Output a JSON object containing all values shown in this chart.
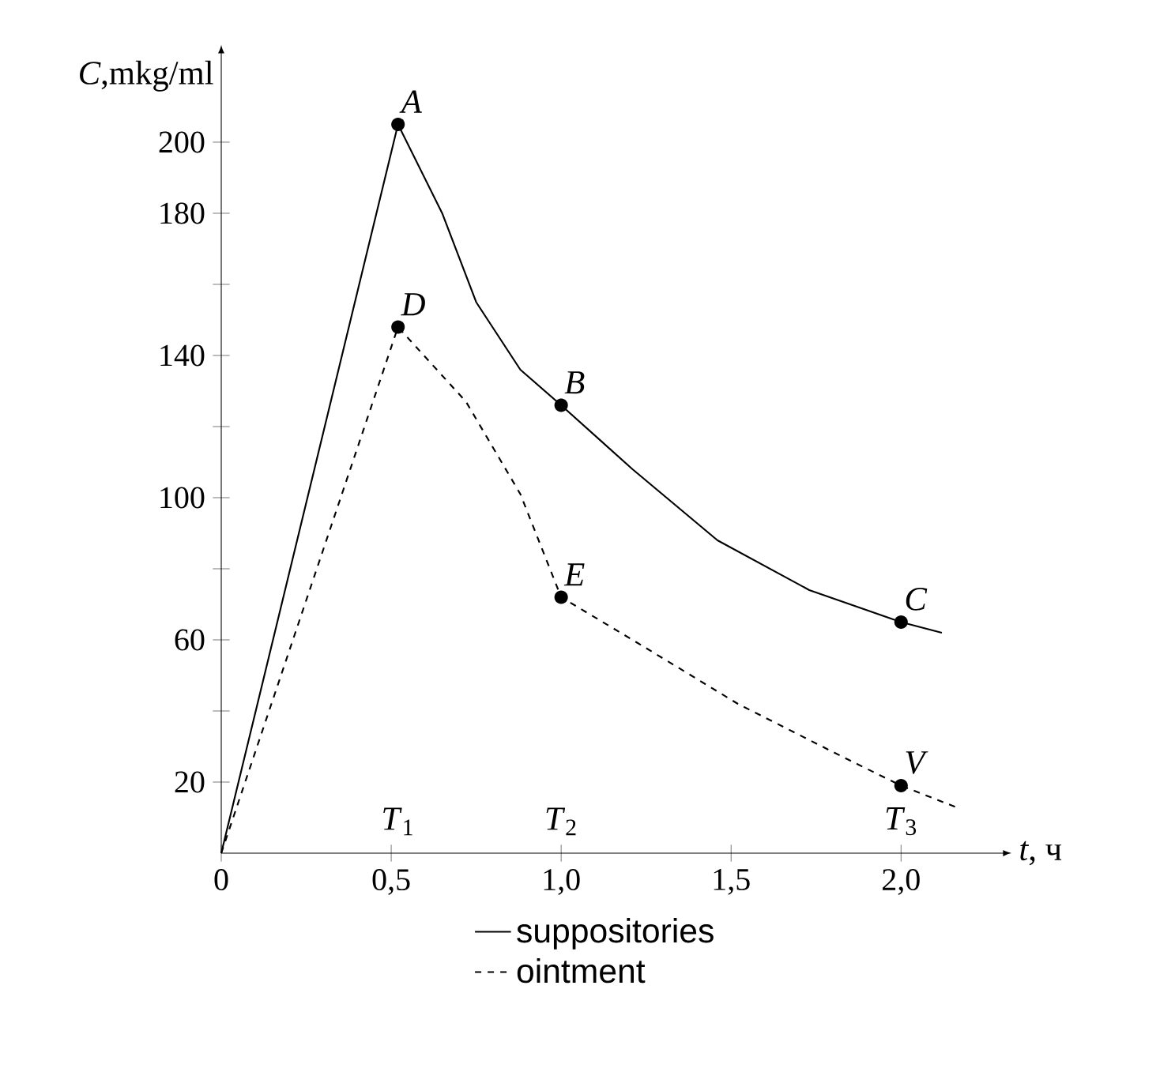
{
  "chart_data": {
    "type": "line",
    "xlabel": "*t*, ч",
    "ylabel": "*C*,mkg/ml",
    "xlim": [
      0,
      2.3
    ],
    "ylim": [
      0,
      225
    ],
    "xticks": [
      0,
      {
        "value": 0.5,
        "label": "0,5"
      },
      {
        "value": 1.0,
        "label": "1,0"
      },
      {
        "value": 1.5,
        "label": "1,5"
      },
      {
        "value": 2.0,
        "label": "2,0"
      }
    ],
    "yticks": [
      20,
      {
        "value": 40,
        "label": null
      },
      60,
      {
        "value": 80,
        "label": null
      },
      100,
      {
        "value": 120,
        "label": null
      },
      140,
      {
        "value": 160,
        "label": null
      },
      180,
      200
    ],
    "series": [
      {
        "name": "suppositories",
        "color": "#000000",
        "line_style": "solid",
        "x": [
          0,
          0.52,
          0.65,
          0.75,
          0.88,
          1.0,
          1.21,
          1.46,
          1.73,
          2.0,
          2.12
        ],
        "values": [
          0,
          205,
          180,
          155,
          136,
          126,
          108,
          88,
          74,
          65,
          62
        ]
      },
      {
        "name": "ointment",
        "color": "#000000",
        "line_style": "dashed",
        "x": [
          0,
          0.52,
          0.72,
          0.88,
          1.0,
          1.21,
          1.52,
          1.83,
          2.0,
          2.16
        ],
        "values": [
          0,
          148,
          127,
          101,
          72,
          60,
          42,
          27,
          19,
          13
        ]
      }
    ],
    "annotations": [
      {
        "text": "*A*",
        "x": 0.52,
        "y": 205
      },
      {
        "text": "*B*",
        "x": 1.0,
        "y": 126
      },
      {
        "text": "*C*",
        "x": 2.0,
        "y": 65
      },
      {
        "text": "*D*",
        "x": 0.52,
        "y": 148
      },
      {
        "text": "*E*",
        "x": 1.0,
        "y": 72
      },
      {
        "text": "*V*",
        "x": 2.0,
        "y": 19
      },
      "*T*$_{1}$",
      "*T*$_{2}$",
      "*T*$_{3}$"
    ],
    "legend": "bottom",
    "grid": false,
    "marker": "none"
  }
}
